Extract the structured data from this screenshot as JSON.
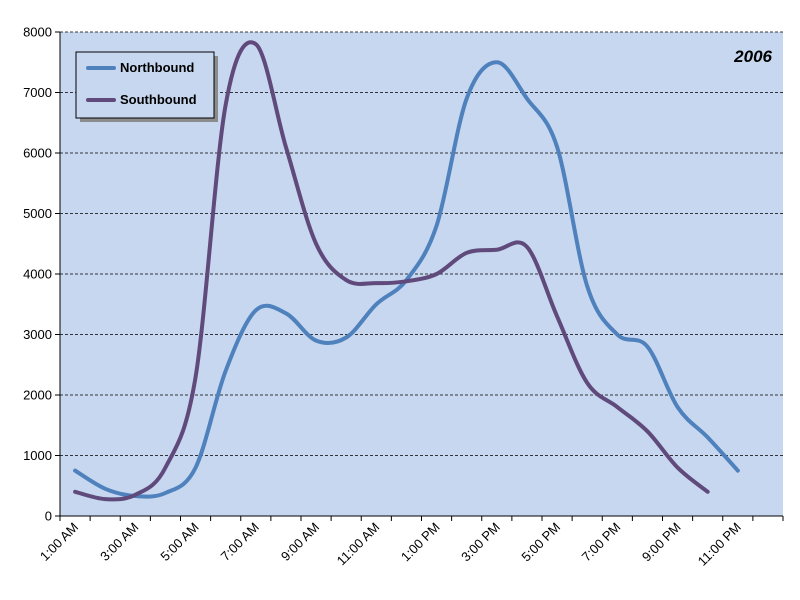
{
  "chart_data": {
    "type": "line",
    "annotation": "2006",
    "ylim": [
      0,
      8000
    ],
    "y_ticks": [
      0,
      1000,
      2000,
      3000,
      4000,
      5000,
      6000,
      7000,
      8000
    ],
    "y_tick_labels": [
      "0",
      "1000",
      "2000",
      "3000",
      "4000",
      "5000",
      "6000",
      "7000",
      "8000"
    ],
    "x_categories": [
      "1:00 AM",
      "2:00 AM",
      "3:00 AM",
      "4:00 AM",
      "5:00 AM",
      "6:00 AM",
      "7:00 AM",
      "8:00 AM",
      "9:00 AM",
      "10:00 AM",
      "11:00 AM",
      "12:00 PM",
      "1:00 PM",
      "2:00 PM",
      "3:00 PM",
      "4:00 PM",
      "5:00 PM",
      "6:00 PM",
      "7:00 PM",
      "8:00 PM",
      "9:00 PM",
      "10:00 PM",
      "11:00 PM",
      "12:00 AM"
    ],
    "x_tick_labels": [
      "1:00 AM",
      "",
      "3:00 AM",
      "",
      "5:00 AM",
      "",
      "7:00 AM",
      "",
      "9:00 AM",
      "",
      "11:00 AM",
      "",
      "1:00 PM",
      "",
      "3:00 PM",
      "",
      "5:00 PM",
      "",
      "7:00 PM",
      "",
      "9:00 PM",
      "",
      "11:00 PM",
      ""
    ],
    "grid": "horizontal",
    "legend_position": "top-left",
    "colors": {
      "plot_background": "#c6d7ef",
      "grid": "#000000"
    },
    "series": [
      {
        "name": "Northbound",
        "color": "#4f81bd",
        "values": [
          750,
          450,
          330,
          380,
          800,
          2400,
          3400,
          3350,
          2900,
          2950,
          3500,
          3900,
          4800,
          6900,
          7500,
          6900,
          6100,
          3800,
          3000,
          2800,
          1800,
          1300,
          750,
          null
        ]
      },
      {
        "name": "Southbound",
        "color": "#604a7b",
        "values": [
          400,
          280,
          350,
          800,
          2300,
          6800,
          7800,
          6100,
          4500,
          3900,
          3850,
          3880,
          4000,
          4350,
          4400,
          4450,
          3300,
          2200,
          1800,
          1400,
          800,
          400,
          null,
          null
        ]
      }
    ]
  }
}
